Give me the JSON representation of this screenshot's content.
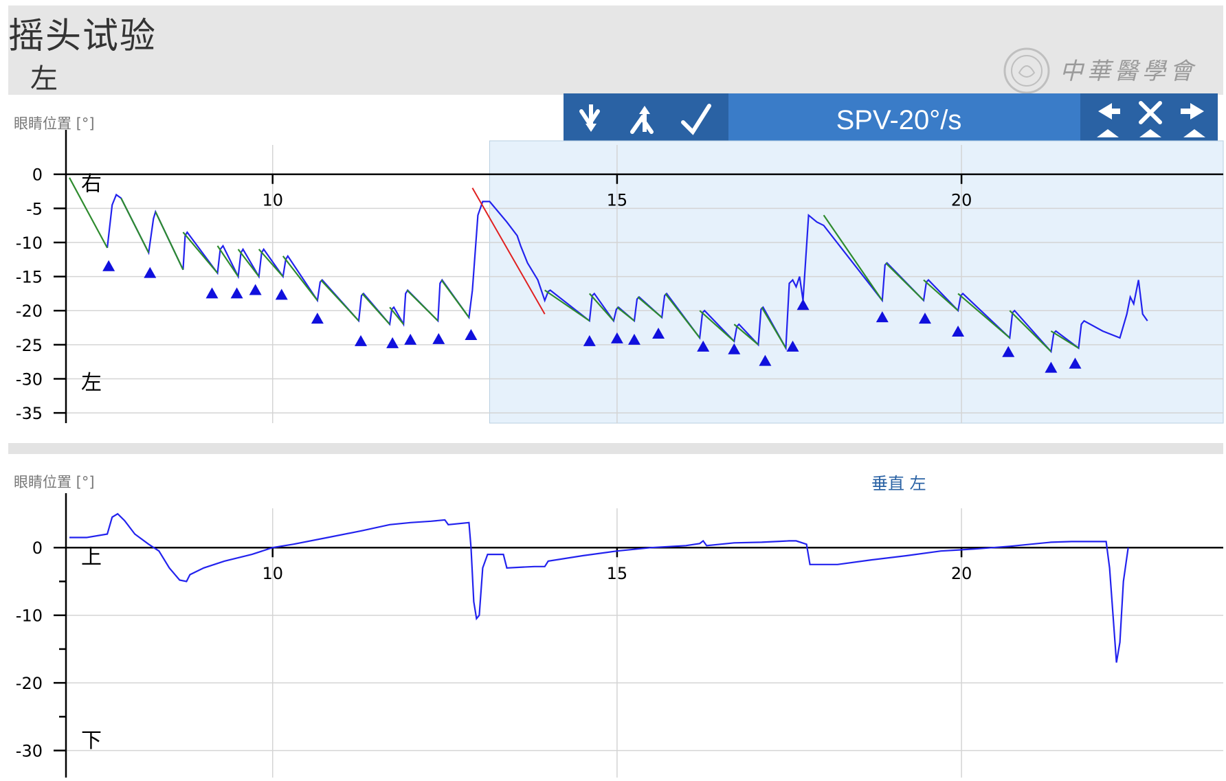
{
  "header": {
    "title": "摇头试验",
    "subtitle": "左"
  },
  "watermark": {
    "text": "中華醫學會"
  },
  "toolbar": {
    "label": "SPV-20°/s",
    "buttons_left": [
      "set-start-icon",
      "set-end-icon",
      "confirm-icon"
    ],
    "buttons_right": [
      "previous-icon",
      "delete-icon",
      "next-icon"
    ]
  },
  "colors": {
    "toolbar_bg": "#3a7cc8",
    "toolbar_dark": "#2a62a4",
    "selection": "#e6f1fb",
    "slow_phase": "#2e8b2e",
    "trace": "#2222ee",
    "marker": "#1010dd",
    "spv_line": "#e02020"
  },
  "chart_data": [
    {
      "type": "line",
      "ylabel": "眼睛位置 [°]",
      "annotations": [
        "右",
        "左"
      ],
      "x_ticks": [
        10,
        15,
        20
      ],
      "y_ticks": [
        0,
        -5,
        -10,
        -15,
        -20,
        -25,
        -30,
        -35
      ],
      "xlim": [
        7,
        23.8
      ],
      "ylim": [
        -36.5,
        3.5
      ],
      "selection_x": [
        13.15,
        23.8
      ],
      "slow_phase_series": [
        [
          [
            7.05,
            -0.5
          ],
          [
            7.6,
            -10.8
          ]
        ],
        [
          [
            7.8,
            -3.5
          ],
          [
            8.2,
            -11.5
          ]
        ],
        [
          [
            8.3,
            -5.5
          ],
          [
            8.7,
            -14
          ]
        ],
        [
          [
            8.7,
            -8.5
          ],
          [
            9.2,
            -14.5
          ]
        ],
        [
          [
            9.2,
            -10.5
          ],
          [
            9.5,
            -15
          ]
        ],
        [
          [
            9.5,
            -11
          ],
          [
            9.8,
            -15
          ]
        ],
        [
          [
            9.8,
            -11
          ],
          [
            10.15,
            -15
          ]
        ],
        [
          [
            10.15,
            -12
          ],
          [
            10.65,
            -18.5
          ]
        ],
        [
          [
            10.7,
            -15.5
          ],
          [
            11.25,
            -21.5
          ]
        ],
        [
          [
            11.3,
            -17.5
          ],
          [
            11.7,
            -22
          ]
        ],
        [
          [
            11.7,
            -19.5
          ],
          [
            11.9,
            -22
          ]
        ],
        [
          [
            11.95,
            -17
          ],
          [
            12.4,
            -21.5
          ]
        ],
        [
          [
            12.45,
            -15.5
          ],
          [
            12.85,
            -21
          ]
        ],
        [
          [
            13.95,
            -17
          ],
          [
            14.6,
            -21.5
          ]
        ],
        [
          [
            14.6,
            -17.5
          ],
          [
            14.95,
            -21.5
          ]
        ],
        [
          [
            15.0,
            -19.5
          ],
          [
            15.25,
            -21.5
          ]
        ],
        [
          [
            15.3,
            -18
          ],
          [
            15.65,
            -21
          ]
        ],
        [
          [
            15.7,
            -17.5
          ],
          [
            16.2,
            -24
          ]
        ],
        [
          [
            16.2,
            -20
          ],
          [
            16.7,
            -24.5
          ]
        ],
        [
          [
            16.7,
            -22
          ],
          [
            17.05,
            -25
          ]
        ],
        [
          [
            17.1,
            -19.5
          ],
          [
            17.45,
            -25.5
          ]
        ],
        [
          [
            18.0,
            -6
          ],
          [
            18.85,
            -18.5
          ]
        ],
        [
          [
            18.9,
            -13
          ],
          [
            19.45,
            -18.5
          ]
        ],
        [
          [
            19.45,
            -15.5
          ],
          [
            19.95,
            -20
          ]
        ],
        [
          [
            19.95,
            -17.5
          ],
          [
            20.7,
            -24
          ]
        ],
        [
          [
            20.7,
            -20
          ],
          [
            21.3,
            -26
          ]
        ],
        [
          [
            21.3,
            -23
          ],
          [
            21.7,
            -25.5
          ]
        ]
      ],
      "raw_trace": [
        [
          7.6,
          -10.8
        ],
        [
          7.67,
          -4.5
        ],
        [
          7.73,
          -3.0
        ],
        [
          7.8,
          -3.5
        ],
        [
          8.2,
          -11.5
        ],
        [
          8.27,
          -6.5
        ],
        [
          8.3,
          -5.5
        ],
        [
          8.7,
          -14
        ],
        [
          8.73,
          -9
        ],
        [
          8.76,
          -8.5
        ],
        [
          9.2,
          -14.5
        ],
        [
          9.24,
          -11
        ],
        [
          9.28,
          -10.5
        ],
        [
          9.5,
          -15
        ],
        [
          9.54,
          -11.5
        ],
        [
          9.57,
          -11
        ],
        [
          9.8,
          -15
        ],
        [
          9.84,
          -11.5
        ],
        [
          9.87,
          -11
        ],
        [
          10.15,
          -15
        ],
        [
          10.19,
          -12.5
        ],
        [
          10.22,
          -12
        ],
        [
          10.65,
          -18.5
        ],
        [
          10.69,
          -15.8
        ],
        [
          10.72,
          -15.5
        ],
        [
          11.25,
          -21.5
        ],
        [
          11.29,
          -17.8
        ],
        [
          11.32,
          -17.5
        ],
        [
          11.7,
          -22
        ],
        [
          11.73,
          -19.8
        ],
        [
          11.76,
          -19.5
        ],
        [
          11.9,
          -22
        ],
        [
          11.93,
          -17.5
        ],
        [
          11.96,
          -17
        ],
        [
          12.4,
          -21.5
        ],
        [
          12.43,
          -16
        ],
        [
          12.46,
          -15.5
        ],
        [
          12.85,
          -21
        ],
        [
          12.9,
          -17
        ],
        [
          12.98,
          -6
        ],
        [
          13.05,
          -4
        ],
        [
          13.15,
          -4
        ],
        [
          13.4,
          -7
        ],
        [
          13.55,
          -9
        ],
        [
          13.6,
          -10.5
        ],
        [
          13.7,
          -13
        ],
        [
          13.85,
          -15.5
        ],
        [
          13.95,
          -18.5
        ],
        [
          14.0,
          -17.2
        ],
        [
          14.03,
          -17
        ],
        [
          14.6,
          -21.5
        ],
        [
          14.64,
          -17.8
        ],
        [
          14.67,
          -17.5
        ],
        [
          14.95,
          -21.5
        ],
        [
          14.99,
          -19.8
        ],
        [
          15.02,
          -19.5
        ],
        [
          15.25,
          -21.5
        ],
        [
          15.29,
          -18.3
        ],
        [
          15.32,
          -18
        ],
        [
          15.65,
          -21
        ],
        [
          15.69,
          -17.8
        ],
        [
          15.72,
          -17.5
        ],
        [
          16.2,
          -24
        ],
        [
          16.24,
          -20.3
        ],
        [
          16.27,
          -20
        ],
        [
          16.7,
          -24.5
        ],
        [
          16.74,
          -22.3
        ],
        [
          16.77,
          -22
        ],
        [
          17.05,
          -25
        ],
        [
          17.09,
          -19.8
        ],
        [
          17.12,
          -19.5
        ],
        [
          17.45,
          -25.5
        ],
        [
          17.5,
          -16
        ],
        [
          17.55,
          -15.5
        ],
        [
          17.6,
          -16.5
        ],
        [
          17.65,
          -15
        ],
        [
          17.7,
          -18.5
        ],
        [
          17.78,
          -6
        ],
        [
          17.9,
          -7
        ],
        [
          18.0,
          -7.5
        ],
        [
          18.85,
          -18.5
        ],
        [
          18.89,
          -13.3
        ],
        [
          18.92,
          -13
        ],
        [
          19.45,
          -18.5
        ],
        [
          19.49,
          -15.8
        ],
        [
          19.52,
          -15.5
        ],
        [
          19.95,
          -20
        ],
        [
          19.99,
          -17.8
        ],
        [
          20.02,
          -17.5
        ],
        [
          20.7,
          -24
        ],
        [
          20.74,
          -20.3
        ],
        [
          20.77,
          -20
        ],
        [
          21.3,
          -26
        ],
        [
          21.34,
          -23.3
        ],
        [
          21.37,
          -23
        ],
        [
          21.7,
          -25.5
        ],
        [
          21.74,
          -22
        ],
        [
          21.78,
          -21.5
        ],
        [
          22.05,
          -23
        ],
        [
          22.3,
          -24
        ],
        [
          22.4,
          -20.5
        ],
        [
          22.45,
          -18
        ],
        [
          22.5,
          -19
        ],
        [
          22.57,
          -15.5
        ],
        [
          22.63,
          -20.5
        ],
        [
          22.7,
          -21.5
        ]
      ],
      "saccade_markers": [
        [
          7.62,
          -13.5
        ],
        [
          8.22,
          -14.5
        ],
        [
          9.12,
          -17.5
        ],
        [
          9.48,
          -17.5
        ],
        [
          9.75,
          -17
        ],
        [
          10.13,
          -17.7
        ],
        [
          10.65,
          -21.2
        ],
        [
          11.28,
          -24.5
        ],
        [
          11.74,
          -24.8
        ],
        [
          12.0,
          -24.3
        ],
        [
          12.41,
          -24.2
        ],
        [
          12.88,
          -23.6
        ],
        [
          14.6,
          -24.5
        ],
        [
          15.0,
          -24.1
        ],
        [
          15.25,
          -24.3
        ],
        [
          15.6,
          -23.4
        ],
        [
          16.25,
          -25.3
        ],
        [
          16.7,
          -25.7
        ],
        [
          17.15,
          -27.4
        ],
        [
          17.55,
          -25.3
        ],
        [
          17.7,
          -19.2
        ],
        [
          18.85,
          -21
        ],
        [
          19.47,
          -21.2
        ],
        [
          19.95,
          -23.1
        ],
        [
          20.68,
          -26.1
        ],
        [
          21.3,
          -28.4
        ],
        [
          21.65,
          -27.8
        ]
      ],
      "spv_line": [
        [
          12.9,
          -2
        ],
        [
          13.95,
          -20.5
        ]
      ]
    },
    {
      "type": "line",
      "title": "垂直 左",
      "ylabel": "眼睛位置 [°]",
      "annotations": [
        "上",
        "下"
      ],
      "x_ticks": [
        10,
        15,
        20
      ],
      "y_ticks": [
        0,
        -10,
        -20,
        -30
      ],
      "xlim": [
        7,
        23.8
      ],
      "ylim": [
        -34,
        5
      ],
      "trace": [
        [
          7.05,
          1.5
        ],
        [
          7.3,
          1.5
        ],
        [
          7.6,
          2.0
        ],
        [
          7.67,
          4.5
        ],
        [
          7.75,
          5.0
        ],
        [
          7.85,
          4.0
        ],
        [
          8.0,
          2.0
        ],
        [
          8.2,
          0.5
        ],
        [
          8.35,
          -0.5
        ],
        [
          8.5,
          -3.0
        ],
        [
          8.65,
          -4.8
        ],
        [
          8.75,
          -5.0
        ],
        [
          8.8,
          -4.0
        ],
        [
          9.0,
          -3.0
        ],
        [
          9.3,
          -2.0
        ],
        [
          9.7,
          -1.0
        ],
        [
          10.0,
          0
        ],
        [
          10.3,
          0.5
        ],
        [
          10.8,
          1.5
        ],
        [
          11.3,
          2.5
        ],
        [
          11.7,
          3.4
        ],
        [
          12.0,
          3.7
        ],
        [
          12.3,
          3.9
        ],
        [
          12.5,
          4.1
        ],
        [
          12.55,
          3.4
        ],
        [
          12.85,
          3.7
        ],
        [
          12.88,
          0
        ],
        [
          12.92,
          -8
        ],
        [
          12.96,
          -10.5
        ],
        [
          13.0,
          -10
        ],
        [
          13.05,
          -3
        ],
        [
          13.12,
          -1.0
        ],
        [
          13.35,
          -1.0
        ],
        [
          13.4,
          -3.0
        ],
        [
          13.8,
          -2.8
        ],
        [
          13.95,
          -2.8
        ],
        [
          14.0,
          -2.0
        ],
        [
          14.5,
          -1.2
        ],
        [
          15.0,
          -0.5
        ],
        [
          15.5,
          0
        ],
        [
          16.0,
          0.3
        ],
        [
          16.2,
          0.6
        ],
        [
          16.25,
          1.0
        ],
        [
          16.3,
          0.3
        ],
        [
          16.7,
          0.7
        ],
        [
          17.1,
          0.8
        ],
        [
          17.5,
          1.0
        ],
        [
          17.6,
          1.0
        ],
        [
          17.75,
          0.5
        ],
        [
          17.8,
          -2.5
        ],
        [
          18.2,
          -2.5
        ],
        [
          18.7,
          -1.8
        ],
        [
          19.2,
          -1.2
        ],
        [
          19.7,
          -0.5
        ],
        [
          20.2,
          -0.2
        ],
        [
          20.7,
          0.2
        ],
        [
          21.3,
          0.8
        ],
        [
          21.6,
          0.9
        ],
        [
          22.0,
          0.9
        ],
        [
          22.1,
          0.9
        ],
        [
          22.15,
          -3
        ],
        [
          22.2,
          -10
        ],
        [
          22.25,
          -17
        ],
        [
          22.3,
          -14
        ],
        [
          22.35,
          -5
        ],
        [
          22.42,
          0
        ]
      ]
    }
  ]
}
